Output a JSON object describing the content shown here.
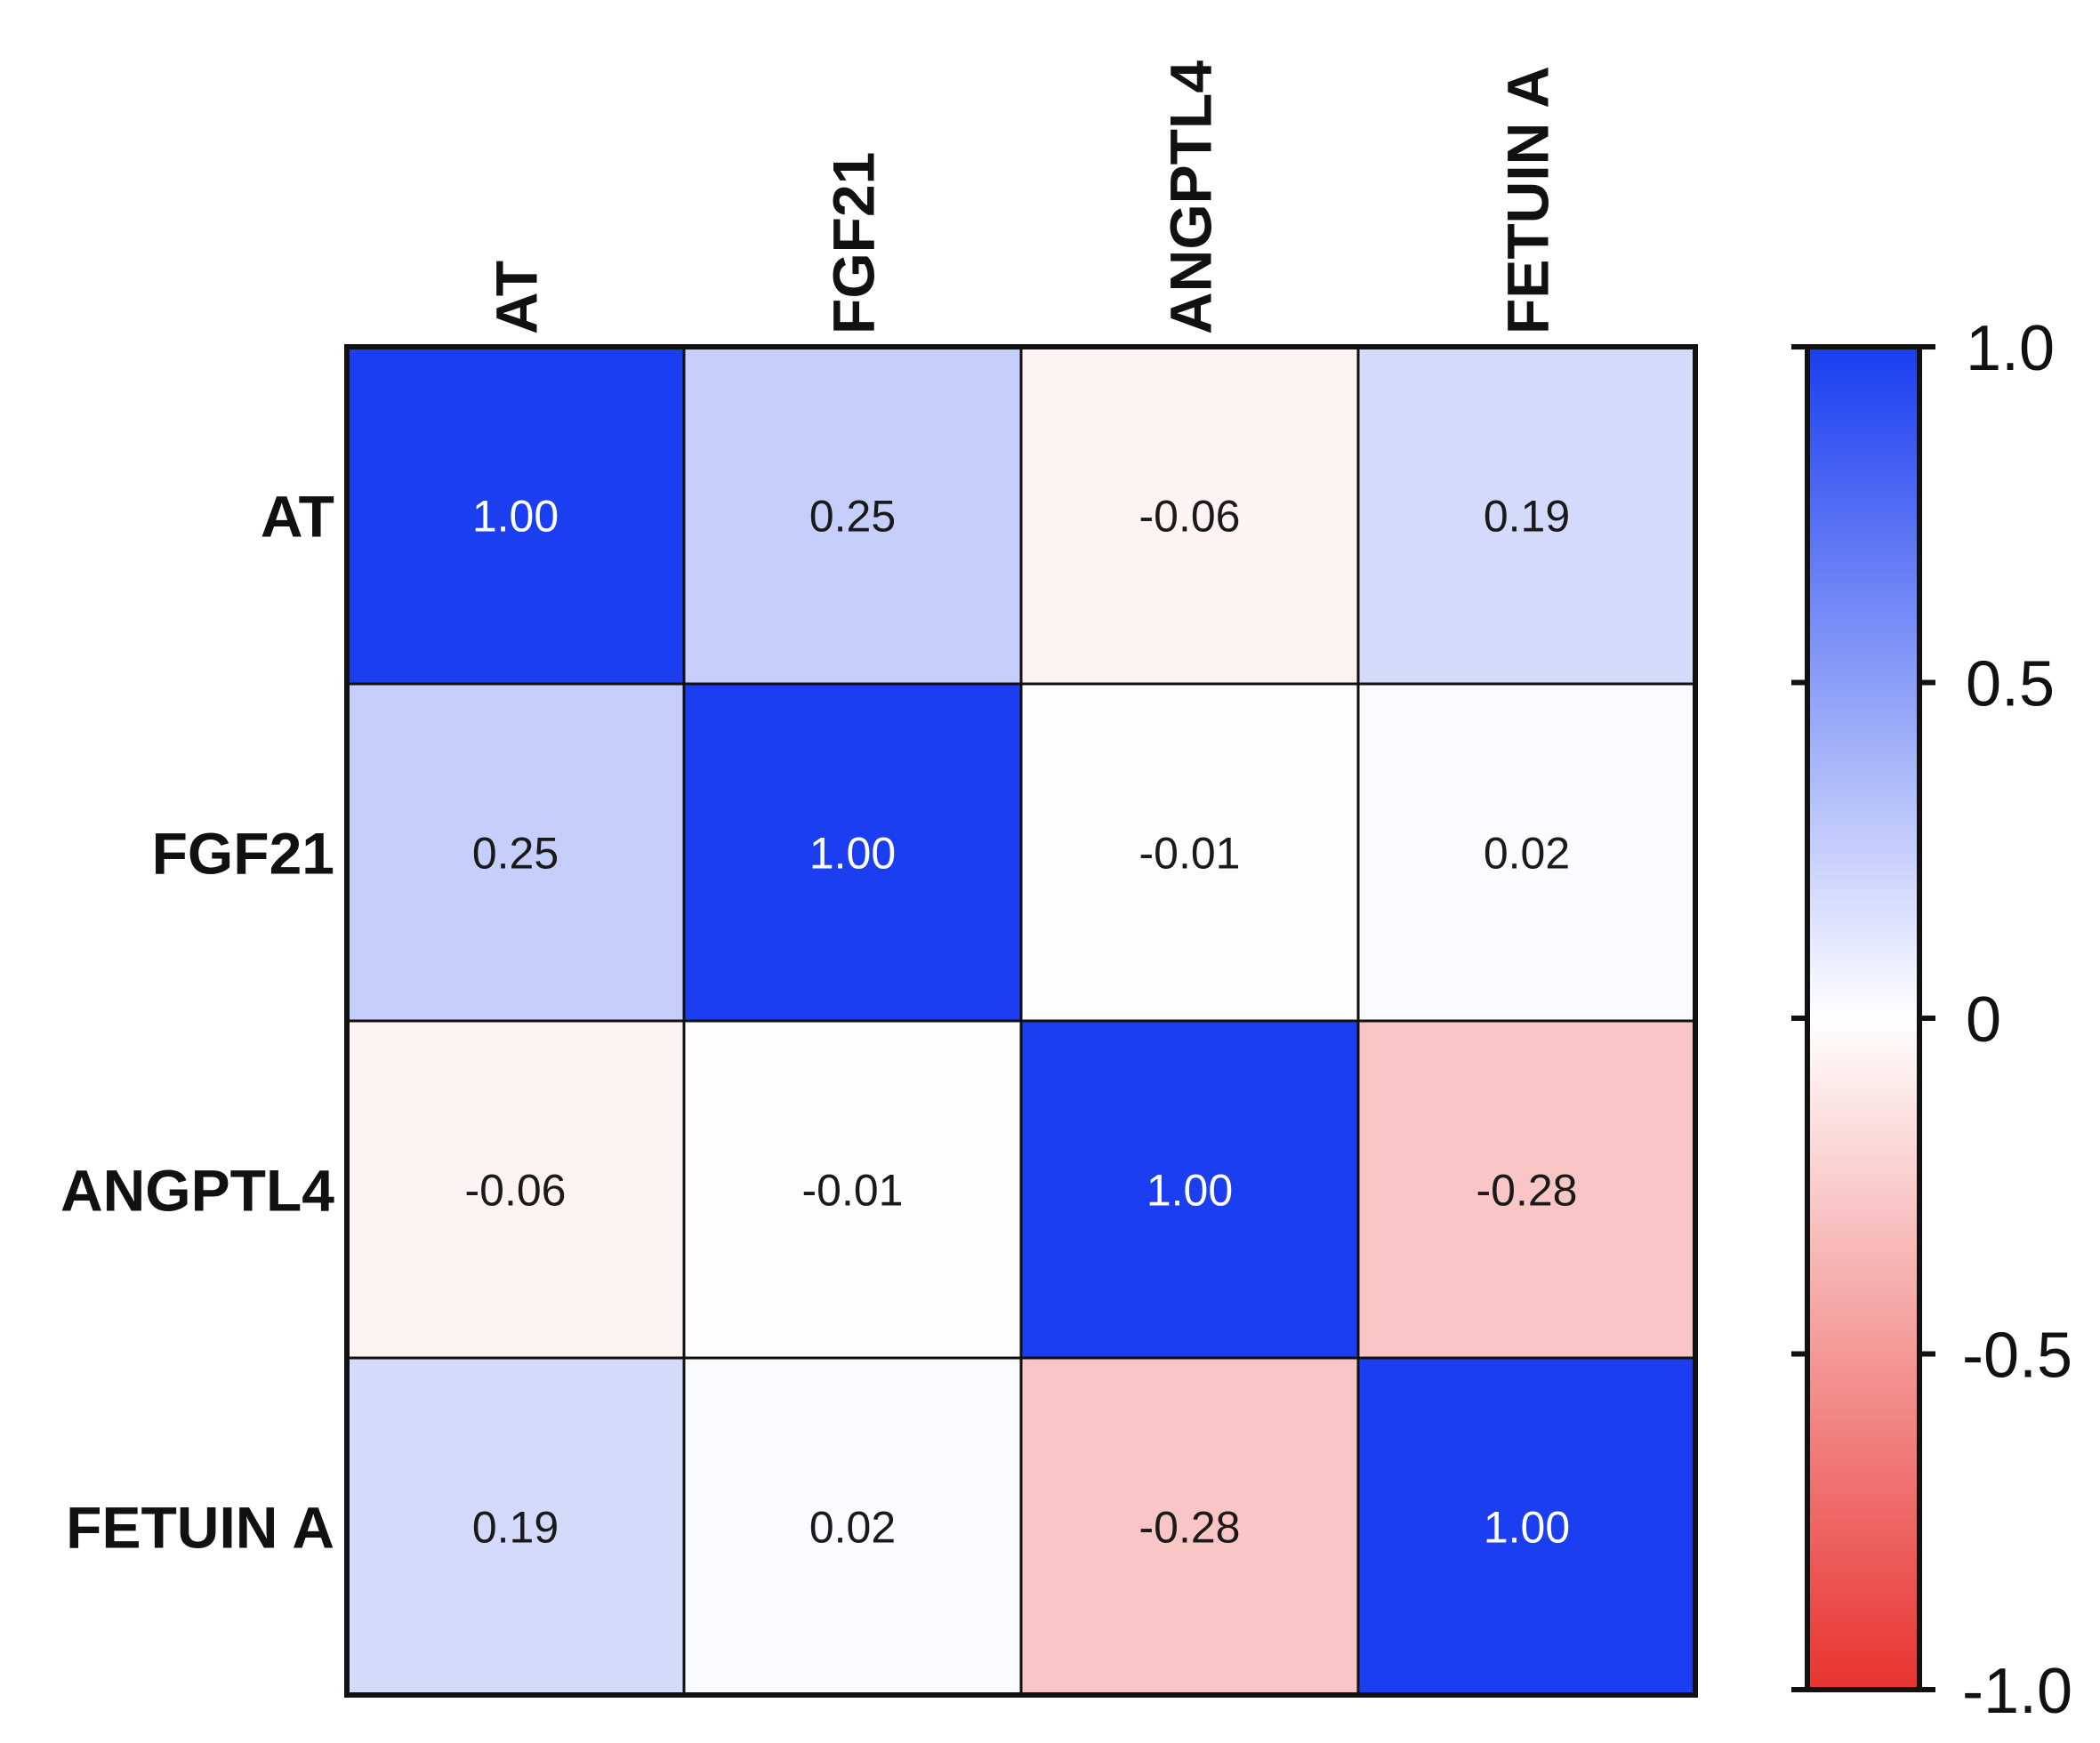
{
  "chart_data": {
    "type": "heatmap",
    "row_labels": [
      "AT",
      "FGF21",
      "ANGPTL4",
      "FETUIN A"
    ],
    "col_labels": [
      "AT",
      "FGF21",
      "ANGPTL4",
      "FETUIN A"
    ],
    "values": [
      [
        1.0,
        0.25,
        -0.06,
        0.19
      ],
      [
        0.25,
        1.0,
        -0.01,
        0.02
      ],
      [
        -0.06,
        -0.01,
        1.0,
        -0.28
      ],
      [
        0.19,
        0.02,
        -0.28,
        1.0
      ]
    ],
    "value_labels": [
      [
        "1.00",
        "0.25",
        "-0.06",
        "0.19"
      ],
      [
        "0.25",
        "1.00",
        "-0.01",
        "0.02"
      ],
      [
        "-0.06",
        "-0.01",
        "1.00",
        "-0.28"
      ],
      [
        "0.19",
        "0.02",
        "-0.28",
        "1.00"
      ]
    ],
    "colorbar": {
      "range": [
        -1.0,
        1.0
      ],
      "ticks": [
        1.0,
        0.5,
        0,
        -0.5,
        -1.0
      ],
      "tick_labels": [
        "1.0",
        "0.5",
        "0",
        "-0.5",
        "-1.0"
      ]
    },
    "colors": {
      "positive": "#1a3ef0",
      "neutral": "#ffffff",
      "negative": "#e8332f"
    }
  }
}
